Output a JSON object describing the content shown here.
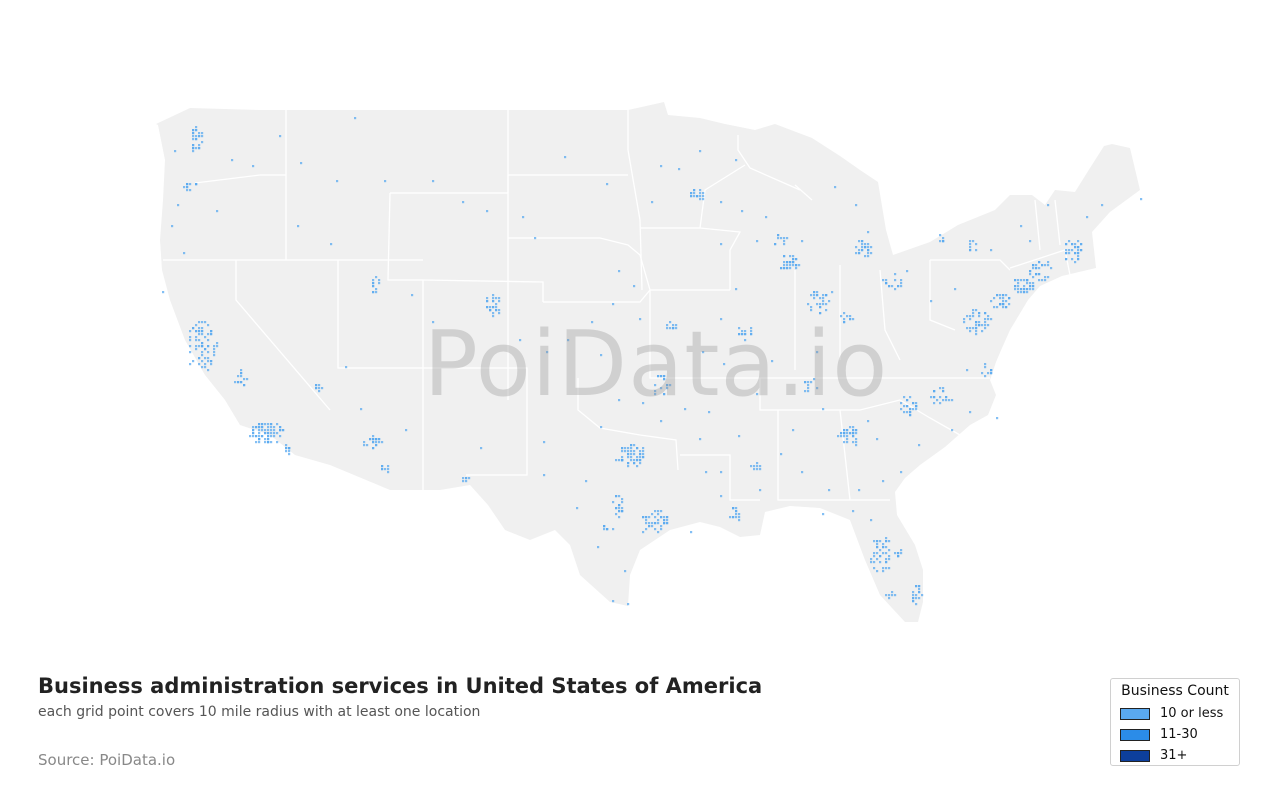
{
  "map": {
    "title": "Business administration services in United States of America",
    "subtitle": "each grid point covers 10 mile radius with at least one location",
    "source": "Source: PoiData.io",
    "watermark": "PoiData.io",
    "land_color": "#f0f0f0",
    "border_color": "#ffffff",
    "legend": {
      "title": "Business Count",
      "items": [
        {
          "label": "10 or less",
          "color": "#5aa9f0"
        },
        {
          "label": "11-30",
          "color": "#2b8ce8"
        },
        {
          "label": "31+",
          "color": "#0d3f9c"
        }
      ]
    }
  }
}
